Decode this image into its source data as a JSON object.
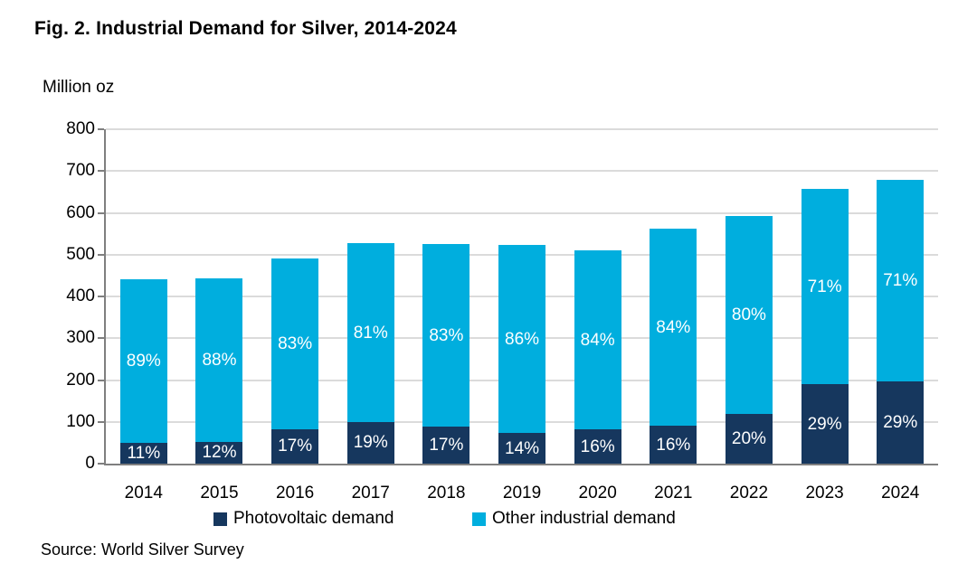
{
  "title": "Fig. 2. Industrial Demand for Silver, 2014-2024",
  "y_axis_label": "Million oz",
  "source": "Source: World Silver Survey",
  "legend": [
    {
      "label": "Photovoltaic demand",
      "color": "#16375E"
    },
    {
      "label": "Other industrial demand",
      "color": "#00AEDE"
    }
  ],
  "colors": {
    "photovoltaic": "#16375E",
    "other_industrial": "#00AEDE",
    "gridline": "#DBDBDB",
    "axis": "#7F7F7F"
  },
  "chart_data": {
    "type": "bar",
    "stacked": true,
    "title": "Fig. 2. Industrial Demand for Silver, 2014-2024",
    "xlabel": "",
    "ylabel": "Million oz",
    "ylim": [
      0,
      800
    ],
    "ytick_step": 100,
    "yticks": [
      0,
      100,
      200,
      300,
      400,
      500,
      600,
      700,
      800
    ],
    "grid": true,
    "legend_position": "bottom",
    "categories": [
      "2014",
      "2015",
      "2016",
      "2017",
      "2018",
      "2019",
      "2020",
      "2021",
      "2022",
      "2023",
      "2024"
    ],
    "series": [
      {
        "name": "Photovoltaic demand",
        "color": "#16375E",
        "values": [
          49,
          53,
          83,
          100,
          89,
          73,
          82,
          90,
          118,
          190,
          197
        ],
        "percent_labels": [
          "11%",
          "12%",
          "17%",
          "19%",
          "17%",
          "14%",
          "16%",
          "16%",
          "20%",
          "29%",
          "29%"
        ]
      },
      {
        "name": "Other industrial demand",
        "color": "#00AEDE",
        "values": [
          392,
          390,
          407,
          427,
          436,
          450,
          428,
          473,
          474,
          467,
          483
        ],
        "percent_labels": [
          "89%",
          "88%",
          "83%",
          "81%",
          "83%",
          "86%",
          "84%",
          "84%",
          "80%",
          "71%",
          "71%"
        ]
      }
    ],
    "totals": [
      441,
      443,
      490,
      527,
      525,
      523,
      510,
      563,
      592,
      657,
      680
    ]
  }
}
